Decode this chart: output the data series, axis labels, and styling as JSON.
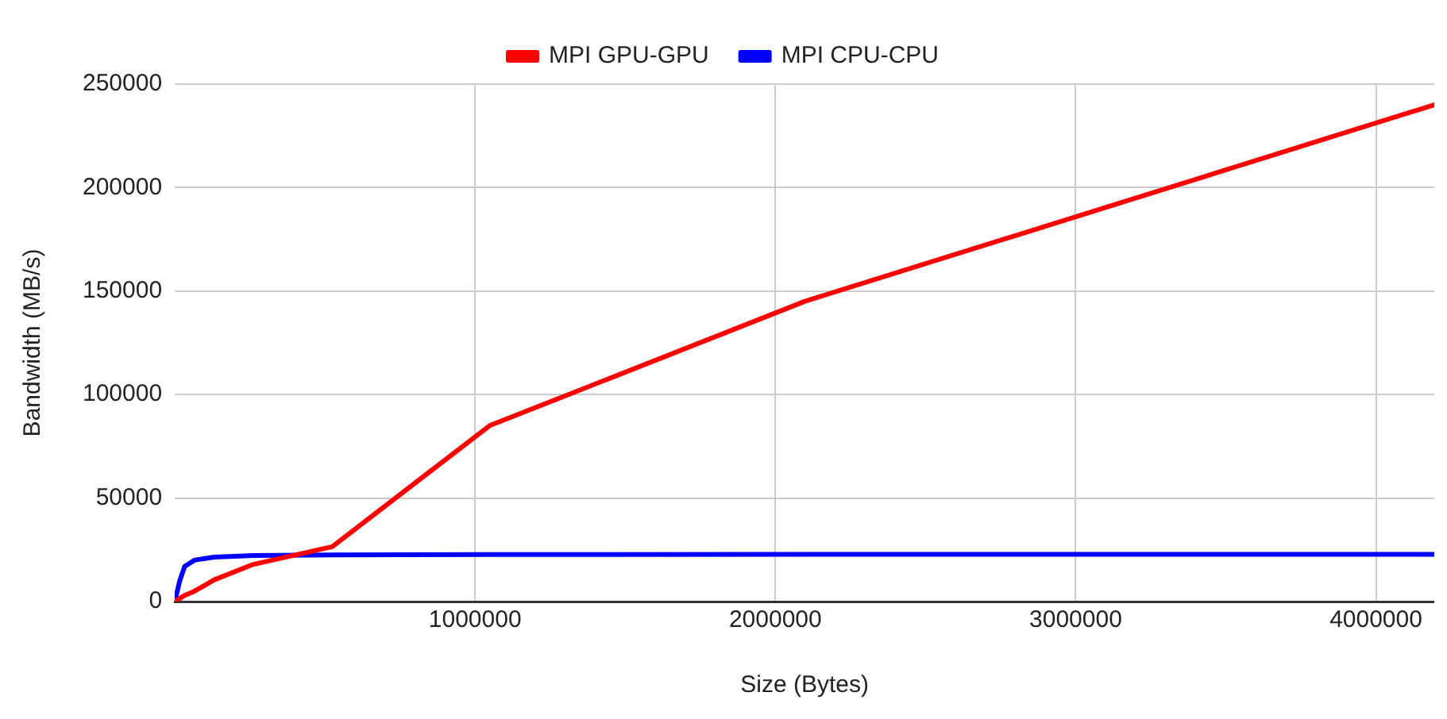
{
  "chart_data": {
    "type": "line",
    "xlabel": "Size (Bytes)",
    "ylabel": "Bandwidth (MB/s)",
    "x": [
      1024,
      16384,
      32768,
      65536,
      131072,
      262144,
      524288,
      1048576,
      2097152,
      4194304
    ],
    "series": [
      {
        "name": "MPI GPU-GPU",
        "color": "#ff0000",
        "values": [
          100,
          1500,
          3000,
          5000,
          10500,
          18000,
          26500,
          85000,
          145000,
          240000
        ]
      },
      {
        "name": "MPI CPU-CPU",
        "color": "#0000ff",
        "values": [
          500,
          10000,
          17000,
          20000,
          21500,
          22200,
          22500,
          22700,
          22800,
          22800
        ]
      }
    ],
    "xlim": [
      0,
      4194304
    ],
    "xticks": [
      1000000,
      2000000,
      3000000,
      4000000
    ],
    "ylim": [
      0,
      250000
    ],
    "yticks": [
      0,
      50000,
      100000,
      150000,
      200000,
      250000
    ],
    "grid": true,
    "legend": "top",
    "marker": "none",
    "line_style": "solid"
  }
}
